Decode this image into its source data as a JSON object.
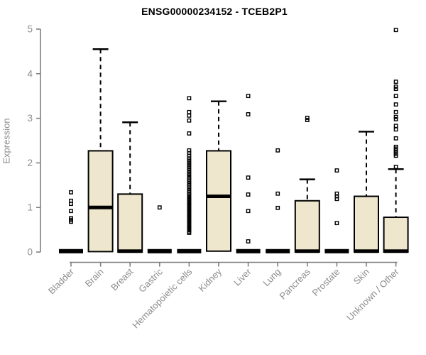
{
  "header": {
    "title": "ENSG00000234152 - TCEB2P1"
  },
  "chart_data": {
    "type": "boxplot",
    "title": "ENSG00000234152 - TCEB2P1",
    "xlabel": "",
    "ylabel": "Expression",
    "ylim": [
      0,
      5
    ],
    "yticks": [
      0,
      1,
      2,
      3,
      4,
      5
    ],
    "grid": false,
    "legend": "none",
    "colors": {
      "box_fill": "#EFE7CD",
      "box_border": "#000000",
      "median": "#000000",
      "whisker": "#000000",
      "axis": "#808080",
      "tick_label": "#8c8c8c",
      "title": "#000000"
    },
    "categories": [
      {
        "name": "Bladder",
        "collapsed": true,
        "q1": 0,
        "median": 0.02,
        "q3": 0.04,
        "whisker_low": 0,
        "whisker_high": 0.04,
        "outliers": [
          0.68,
          0.72,
          0.76,
          0.92,
          1.08,
          1.15,
          1.34
        ]
      },
      {
        "name": "Brain",
        "collapsed": false,
        "q1": 0.01,
        "median": 1.0,
        "q3": 2.27,
        "whisker_low": 0.01,
        "whisker_high": 4.55,
        "outliers": []
      },
      {
        "name": "Breast",
        "collapsed": false,
        "q1": 0,
        "median": 0.02,
        "q3": 1.3,
        "whisker_low": 0,
        "whisker_high": 2.91,
        "outliers": []
      },
      {
        "name": "Gastric",
        "collapsed": true,
        "q1": 0,
        "median": 0.02,
        "q3": 0.04,
        "whisker_low": 0,
        "whisker_high": 0.04,
        "outliers": [
          1.0
        ]
      },
      {
        "name": "Hematopoietic cells",
        "collapsed": true,
        "q1": 0,
        "median": 0.02,
        "q3": 0.04,
        "whisker_low": 0,
        "whisker_high": 0.04,
        "outliers": [
          0.43,
          0.46,
          0.49,
          0.52,
          0.55,
          0.58,
          0.61,
          0.64,
          0.67,
          0.7,
          0.73,
          0.76,
          0.79,
          0.82,
          0.85,
          0.88,
          0.91,
          0.94,
          0.97,
          1.0,
          1.03,
          1.06,
          1.09,
          1.12,
          1.15,
          1.18,
          1.21,
          1.24,
          1.27,
          1.3,
          1.34,
          1.38,
          1.42,
          1.46,
          1.5,
          1.54,
          1.58,
          1.62,
          1.66,
          1.7,
          1.75,
          1.8,
          1.85,
          1.9,
          1.95,
          2.0,
          2.05,
          2.1,
          2.16,
          2.22,
          2.28,
          2.66,
          2.95,
          3.06,
          3.14,
          3.45
        ]
      },
      {
        "name": "Kidney",
        "collapsed": false,
        "q1": 0.02,
        "median": 1.25,
        "q3": 2.27,
        "whisker_low": 0.02,
        "whisker_high": 3.38,
        "outliers": []
      },
      {
        "name": "Liver",
        "collapsed": true,
        "q1": 0,
        "median": 0.02,
        "q3": 0.04,
        "whisker_low": 0,
        "whisker_high": 0.04,
        "outliers": [
          0.24,
          0.92,
          1.29,
          1.67,
          3.09,
          3.5
        ]
      },
      {
        "name": "Lung",
        "collapsed": true,
        "q1": 0,
        "median": 0.02,
        "q3": 0.04,
        "whisker_low": 0,
        "whisker_high": 0.04,
        "outliers": [
          0.99,
          1.31,
          2.28
        ]
      },
      {
        "name": "Pancreas",
        "collapsed": false,
        "q1": 0,
        "median": 0.02,
        "q3": 1.15,
        "whisker_low": 0,
        "whisker_high": 1.63,
        "outliers": [
          2.96,
          3.01
        ]
      },
      {
        "name": "Prostate",
        "collapsed": true,
        "q1": 0,
        "median": 0.02,
        "q3": 0.04,
        "whisker_low": 0,
        "whisker_high": 0.04,
        "outliers": [
          0.65,
          1.19,
          1.25,
          1.31,
          1.83
        ]
      },
      {
        "name": "Skin",
        "collapsed": false,
        "q1": 0,
        "median": 0.02,
        "q3": 1.25,
        "whisker_low": 0,
        "whisker_high": 2.7,
        "outliers": []
      },
      {
        "name": "Unknown / Other",
        "collapsed": false,
        "q1": 0,
        "median": 0.02,
        "q3": 0.78,
        "whisker_low": 0,
        "whisker_high": 1.86,
        "outliers": [
          1.91,
          2.16,
          2.2,
          2.24,
          2.28,
          2.32,
          2.36,
          2.55,
          2.75,
          2.83,
          2.98,
          3.03,
          3.14,
          3.31,
          3.5,
          3.66,
          3.71,
          3.82,
          4.98
        ]
      }
    ]
  }
}
